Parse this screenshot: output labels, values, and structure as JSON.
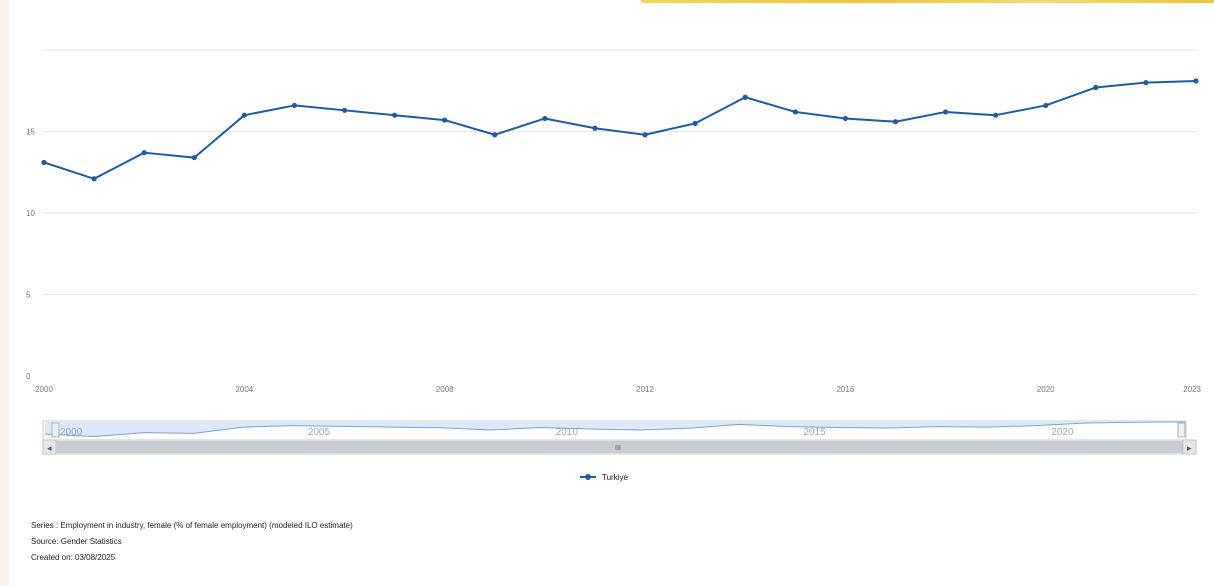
{
  "chart_data": {
    "type": "line",
    "series": [
      {
        "name": "Turkiye",
        "x": [
          2000,
          2001,
          2002,
          2003,
          2004,
          2005,
          2006,
          2007,
          2008,
          2009,
          2010,
          2011,
          2012,
          2013,
          2014,
          2015,
          2016,
          2017,
          2018,
          2019,
          2020,
          2021,
          2022,
          2023
        ],
        "values": [
          13.1,
          12.1,
          13.7,
          13.4,
          16.0,
          16.6,
          16.3,
          16.0,
          15.7,
          14.8,
          15.8,
          15.2,
          14.8,
          15.5,
          17.1,
          16.2,
          15.8,
          15.6,
          16.2,
          16.0,
          16.6,
          17.7,
          18.0,
          18.1
        ]
      }
    ],
    "xlim": [
      2000,
      2023
    ],
    "ylim": [
      0,
      20
    ],
    "y_ticks": [
      "0",
      "5",
      "10",
      "15"
    ],
    "x_ticks": [
      "2000",
      "2004",
      "2008",
      "2012",
      "2016",
      "2020",
      "2023"
    ],
    "grid": true,
    "legend_placement": "bottom-center",
    "colors": {
      "series": "#1f5ba3",
      "grid": "#e6e6e6",
      "navigator_fill": "#dce9f8"
    }
  },
  "navigator": {
    "year_labels": [
      "2000",
      "2005",
      "2010",
      "2015",
      "2020"
    ],
    "scroll_thumb_glyph": "III",
    "left_arrow": "◂",
    "right_arrow": "▸"
  },
  "legend": {
    "label": "Turkiye"
  },
  "footer": {
    "series": "Series : Employment in industry, female (% of female employment) (modeled ILO estimate)",
    "source": "Source: Gender Statistics",
    "created": "Created on: 03/08/2025"
  }
}
